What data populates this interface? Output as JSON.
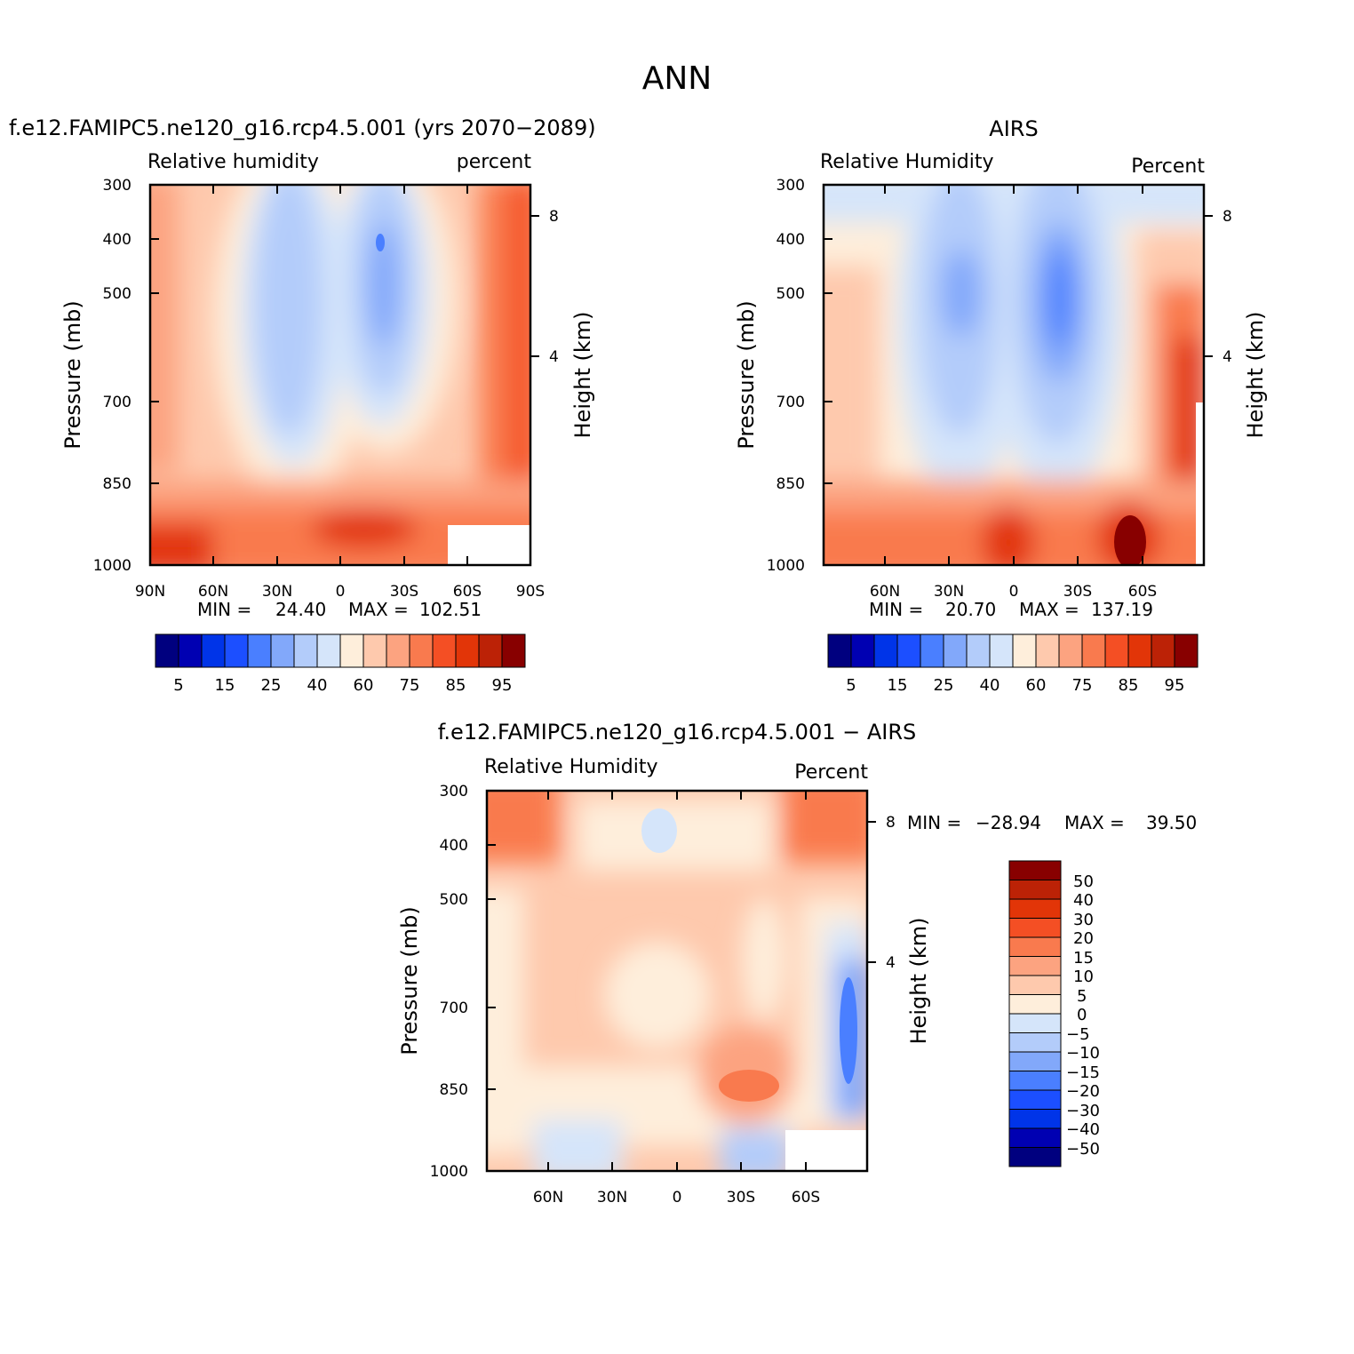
{
  "title": "ANN",
  "colors": {
    "rh_scale": [
      "#00007f",
      "#0000b2",
      "#0034e8",
      "#1c4fff",
      "#4a7fff",
      "#82a8fa",
      "#b3ccfa",
      "#d5e5fa",
      "#feeedb",
      "#fec9ad",
      "#fca380",
      "#f97a4e",
      "#f44f24",
      "#e23508",
      "#bc2206",
      "#880000"
    ],
    "diff_scale": [
      "#00007f",
      "#0000b2",
      "#0034e8",
      "#1c4fff",
      "#4a7fff",
      "#82a8fa",
      "#b3ccfa",
      "#d5e5fa",
      "#feeedb",
      "#fec9ad",
      "#fca380",
      "#f97a4e",
      "#f44f24",
      "#e23508",
      "#bc2206",
      "#880000"
    ]
  },
  "chart_data": [
    {
      "type": "heatmap",
      "title": "f.e12.FAMIPC5.ne120_g16.rcp4.5.001 (yrs 2070−2089)",
      "subtitle_left": "Relative humidity",
      "subtitle_right": "percent",
      "xlabel": "",
      "ylabel": "Pressure (mb)",
      "y2label": "Height (km)",
      "x_ticklabels": [
        "90N",
        "60N",
        "30N",
        "0",
        "30S",
        "60S",
        "90S"
      ],
      "y_ticklabels": [
        "300",
        "400",
        "500",
        "700",
        "850",
        "1000"
      ],
      "y2_ticklabels": [
        "8",
        "4"
      ],
      "stats": {
        "min_label": "MIN =",
        "min": "24.40",
        "max_label": "MAX =",
        "max": "102.51"
      },
      "colorbar_labels": [
        "5",
        "15",
        "25",
        "40",
        "60",
        "75",
        "85",
        "95"
      ],
      "ylim": [
        1000,
        300
      ]
    },
    {
      "type": "heatmap",
      "title": "AIRS",
      "subtitle_left": "Relative Humidity",
      "subtitle_right": "Percent",
      "xlabel": "",
      "ylabel": "Pressure (mb)",
      "y2label": "Height (km)",
      "x_ticklabels": [
        "60N",
        "30N",
        "0",
        "30S",
        "60S"
      ],
      "y_ticklabels": [
        "300",
        "400",
        "500",
        "700",
        "850",
        "1000"
      ],
      "y2_ticklabels": [
        "8",
        "4"
      ],
      "stats": {
        "min_label": "MIN =",
        "min": "20.70",
        "max_label": "MAX =",
        "max": "137.19"
      },
      "colorbar_labels": [
        "5",
        "15",
        "25",
        "40",
        "60",
        "75",
        "85",
        "95"
      ],
      "ylim": [
        1000,
        300
      ]
    },
    {
      "type": "heatmap",
      "title": "f.e12.FAMIPC5.ne120_g16.rcp4.5.001 − AIRS",
      "subtitle_left": "Relative Humidity",
      "subtitle_right": "Percent",
      "xlabel": "",
      "ylabel": "Pressure (mb)",
      "y2label": "Height (km)",
      "x_ticklabels": [
        "60N",
        "30N",
        "0",
        "30S",
        "60S"
      ],
      "y_ticklabels": [
        "300",
        "400",
        "500",
        "700",
        "850",
        "1000"
      ],
      "y2_ticklabels": [
        "8",
        "4"
      ],
      "stats": {
        "min_label": "MIN =",
        "min": "−28.94",
        "max_label": "MAX =",
        "max": "39.50"
      },
      "colorbar_labels": [
        "50",
        "40",
        "30",
        "20",
        "15",
        "10",
        "5",
        "0",
        "−5",
        "−10",
        "−15",
        "−20",
        "−30",
        "−40",
        "−50"
      ],
      "ylim": [
        1000,
        300
      ]
    }
  ]
}
